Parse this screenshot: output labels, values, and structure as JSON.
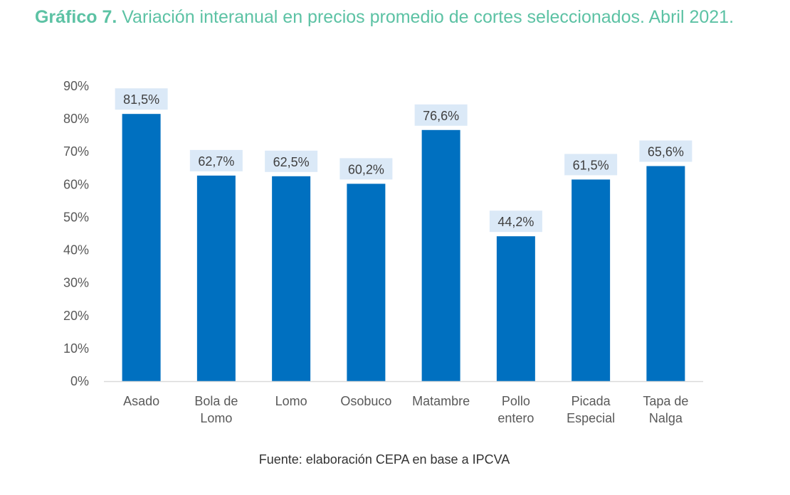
{
  "header": {
    "title_prefix": "Gráfico 7.",
    "title_text": " Variación interanual en precios promedio de cortes seleccionados. Abril 2021."
  },
  "source": "Fuente: elaboración CEPA en base a IPCVA",
  "colors": {
    "bar": "#0070c0",
    "label_bg": "#dbe9f7",
    "title": "#5cc2a4",
    "axis_line": "#d9d9d9"
  },
  "chart_data": {
    "type": "bar",
    "categories": [
      [
        "Asado"
      ],
      [
        "Bola de",
        "Lomo"
      ],
      [
        "Lomo"
      ],
      [
        "Osobuco"
      ],
      [
        "Matambre"
      ],
      [
        "Pollo",
        "entero"
      ],
      [
        "Picada",
        "Especial"
      ],
      [
        "Tapa de",
        "Nalga"
      ]
    ],
    "values": [
      81.5,
      62.7,
      62.5,
      60.2,
      76.6,
      44.2,
      61.5,
      65.6
    ],
    "data_labels": [
      "81,5%",
      "62,7%",
      "62,5%",
      "60,2%",
      "76,6%",
      "44,2%",
      "61,5%",
      "65,6%"
    ],
    "ylim": [
      0,
      90
    ],
    "yticks": [
      "0%",
      "10%",
      "20%",
      "30%",
      "40%",
      "50%",
      "60%",
      "70%",
      "80%",
      "90%"
    ],
    "grid": false,
    "legend": "none"
  }
}
